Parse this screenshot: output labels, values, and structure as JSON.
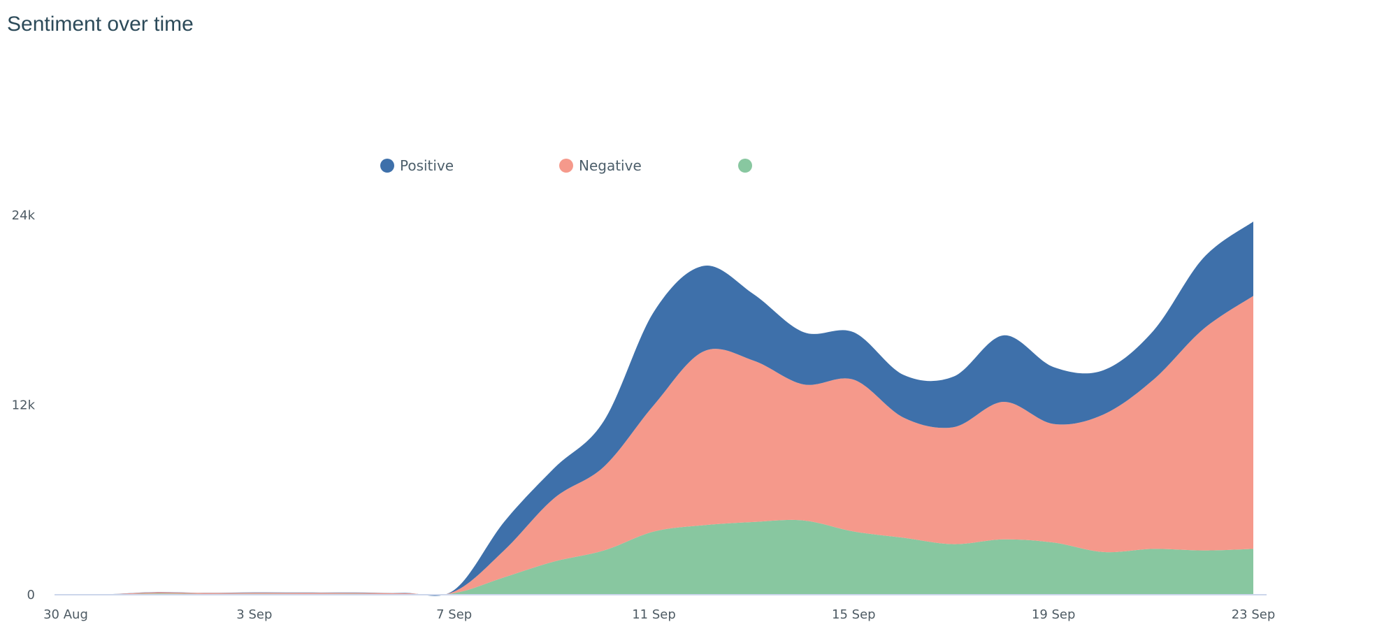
{
  "chart_data": {
    "type": "area",
    "stacked": true,
    "smooth": true,
    "title": "Sentiment over time",
    "xlabel": "",
    "ylabel": "",
    "x": [
      "2024-08-30",
      "2024-08-31",
      "2024-09-01",
      "2024-09-02",
      "2024-09-03",
      "2024-09-04",
      "2024-09-05",
      "2024-09-06",
      "2024-09-07",
      "2024-09-08",
      "2024-09-09",
      "2024-09-10",
      "2024-09-11",
      "2024-09-12",
      "2024-09-13",
      "2024-09-14",
      "2024-09-15",
      "2024-09-16",
      "2024-09-17",
      "2024-09-18",
      "2024-09-19",
      "2024-09-20",
      "2024-09-21",
      "2024-09-22",
      "2024-09-23"
    ],
    "x_tick_labels": [
      "30 Aug",
      "3 Sep",
      "7 Sep",
      "11 Sep",
      "15 Sep",
      "19 Sep",
      "23 Sep"
    ],
    "x_tick_positions": [
      0,
      4,
      8,
      12,
      16,
      20,
      24
    ],
    "y_ticks": [
      0,
      12000,
      24000
    ],
    "y_tick_labels": [
      "0",
      "12k",
      "24k"
    ],
    "ylim": [
      0,
      24000
    ],
    "series": [
      {
        "name": "",
        "color": "#88c7a0",
        "values": [
          0,
          10,
          80,
          50,
          60,
          50,
          60,
          40,
          100,
          1100,
          2100,
          2800,
          4000,
          4400,
          4600,
          4700,
          4000,
          3600,
          3200,
          3500,
          3300,
          2700,
          2900,
          2800,
          2900
        ]
      },
      {
        "name": "Negative",
        "color": "#f5998b",
        "values": [
          0,
          10,
          70,
          60,
          70,
          70,
          60,
          60,
          100,
          1700,
          4000,
          5300,
          8000,
          11000,
          10200,
          8600,
          9600,
          7600,
          7400,
          8700,
          7500,
          8700,
          10700,
          14000,
          16000
        ]
      },
      {
        "name": "Positive",
        "color": "#3e70aa",
        "values": [
          0,
          5,
          20,
          10,
          20,
          20,
          20,
          20,
          100,
          1800,
          1900,
          2900,
          5900,
          5400,
          4200,
          3300,
          3000,
          2700,
          3200,
          4200,
          3600,
          2800,
          3100,
          4500,
          4700
        ]
      }
    ],
    "legend_order": [
      2,
      1,
      0
    ],
    "legend": {
      "position": "top-center"
    },
    "grid": false
  }
}
